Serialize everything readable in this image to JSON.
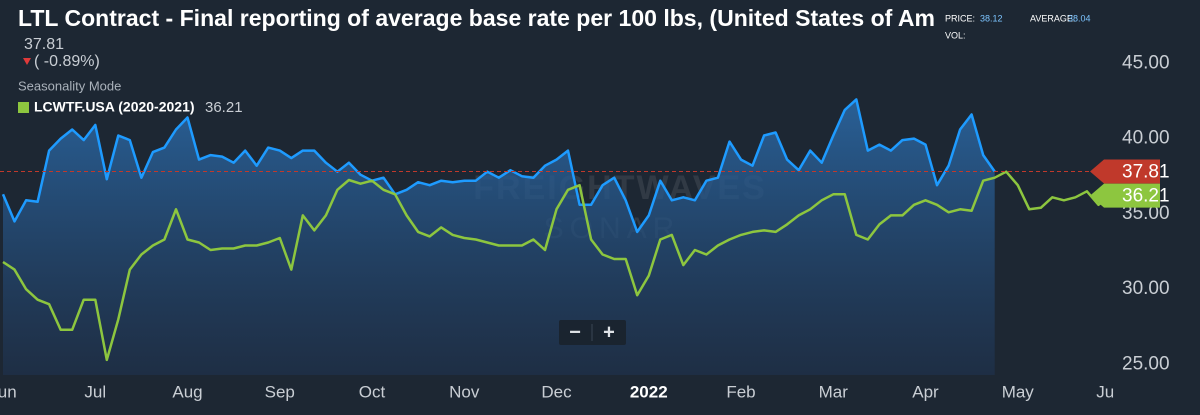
{
  "chart_data": {
    "type": "line",
    "title": "LTL Contract - Final reporting of average base rate per 100 lbs, (United States of Am",
    "change": "( -0.89%)",
    "mode": "Seasonality Mode",
    "info": {
      "price_label": "PRICE:",
      "price": 38.12,
      "average_label": "AVERAGE:",
      "average": 38.04,
      "vol_label": "VOL:"
    },
    "watermark": [
      "FREIGHTWAVES",
      "SONAR"
    ],
    "zoom": [
      "−",
      "+"
    ],
    "categories": [
      "Jun",
      null,
      null,
      null,
      null,
      null,
      null,
      null,
      "Jul",
      null,
      null,
      null,
      null,
      null,
      null,
      null,
      "Aug",
      null,
      null,
      null,
      null,
      null,
      null,
      null,
      "Sep",
      null,
      null,
      null,
      null,
      null,
      null,
      null,
      "Oct",
      null,
      null,
      null,
      null,
      null,
      null,
      null,
      "Nov",
      null,
      null,
      null,
      null,
      null,
      null,
      null,
      "Dec",
      null,
      null,
      null,
      null,
      null,
      null,
      null,
      "2022",
      null,
      null,
      null,
      null,
      null,
      null,
      null,
      "Feb",
      null,
      null,
      null,
      null,
      null,
      null,
      null,
      "Mar",
      null,
      null,
      null,
      null,
      null,
      null,
      null,
      "Apr",
      null,
      null,
      null,
      null,
      null,
      null,
      null,
      "May",
      null,
      null,
      null,
      null,
      null,
      null,
      null,
      "Jun"
    ],
    "series": [
      {
        "color": "#1e9bff",
        "values": [
          36.3,
          34.5,
          35.9,
          35.8,
          39.2,
          40.0,
          40.6,
          39.9,
          40.9,
          37.3,
          40.2,
          39.9,
          37.4,
          39.1,
          39.4,
          40.6,
          41.4,
          38.6,
          38.9,
          38.8,
          38.4,
          39.2,
          38.2,
          39.4,
          39.2,
          38.7,
          39.2,
          39.2,
          38.4,
          37.8,
          38.4,
          37.6,
          37.2,
          37.4,
          36.3,
          36.6,
          37.1,
          36.9,
          37.2,
          37.1,
          37.2,
          37.2,
          37.8,
          37.4,
          37.9,
          37.5,
          37.4,
          38.2,
          38.6,
          39.2,
          35.6,
          35.6,
          36.9,
          37.4,
          35.9,
          33.8,
          34.9,
          37.2,
          35.9,
          36.1,
          35.9,
          37.2,
          37.4,
          39.8,
          38.6,
          38.2,
          40.2,
          40.4,
          38.6,
          37.9,
          39.2,
          38.4,
          40.2,
          41.9,
          42.6,
          39.2,
          39.6,
          39.2,
          39.9,
          40.0,
          39.6,
          36.9,
          38.2,
          40.6,
          41.6,
          38.9,
          37.81,
          null,
          null,
          null,
          null,
          null,
          null,
          null,
          null,
          null,
          null
        ]
      },
      {
        "name": "LCWTF.USA (2020-2021)",
        "color": "#8dc63f",
        "values": [
          31.8,
          31.3,
          30.0,
          29.3,
          29.0,
          27.3,
          27.3,
          29.3,
          29.3,
          25.3,
          28.0,
          31.3,
          32.3,
          32.9,
          33.3,
          35.3,
          33.3,
          33.1,
          32.6,
          32.7,
          32.7,
          32.9,
          32.9,
          33.1,
          33.4,
          31.3,
          34.9,
          33.9,
          34.9,
          36.6,
          37.25,
          37.0,
          37.2,
          36.6,
          36.3,
          34.9,
          33.8,
          33.5,
          34.1,
          33.6,
          33.4,
          33.3,
          33.1,
          32.9,
          32.9,
          32.9,
          33.3,
          32.6,
          35.3,
          36.6,
          36.9,
          33.3,
          32.3,
          32.0,
          32.0,
          29.6,
          30.9,
          33.3,
          33.6,
          31.6,
          32.6,
          32.3,
          32.9,
          33.3,
          33.6,
          33.8,
          33.9,
          33.8,
          34.3,
          34.9,
          35.3,
          35.9,
          36.3,
          36.3,
          33.6,
          33.3,
          34.3,
          34.9,
          34.9,
          35.6,
          35.9,
          35.6,
          35.1,
          35.3,
          35.2,
          37.2,
          37.4,
          37.8,
          36.9,
          35.3,
          35.4,
          36.1,
          35.9,
          36.1,
          36.5,
          35.6,
          36.21
        ]
      }
    ],
    "ylim": [
      24.3,
      49.2
    ],
    "yticks": [
      {
        "value": 25,
        "label": "25.00"
      },
      {
        "value": 30,
        "label": "30.00"
      },
      {
        "value": 35,
        "label": "35.00"
      },
      {
        "value": 40,
        "label": "40.00"
      },
      {
        "value": 45,
        "label": "45.00"
      }
    ],
    "grid": false
  }
}
